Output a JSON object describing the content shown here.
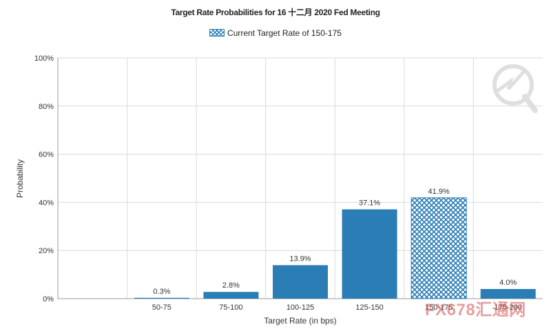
{
  "title": "Target Rate Probabilities for 16 十二月 2020 Fed Meeting",
  "legend": {
    "label": "Current Target Rate of 150-175"
  },
  "watermark": {
    "text": "FX678汇通网"
  },
  "colors": {
    "bar": "#2a7db5",
    "grid": "#d9d9d9",
    "axis": "#999999"
  },
  "chart_data": {
    "type": "bar",
    "title": "Target Rate Probabilities for 16 十二月 2020 Fed Meeting",
    "xlabel": "Target Rate (in bps)",
    "ylabel": "Probability",
    "categories": [
      "50-75",
      "75-100",
      "100-125",
      "125-150",
      "150-175",
      "175-200"
    ],
    "values": [
      0.3,
      2.8,
      13.9,
      37.1,
      41.9,
      4.0
    ],
    "data_labels": [
      "0.3%",
      "2.8%",
      "13.9%",
      "37.1%",
      "41.9%",
      "4.0%"
    ],
    "yticks": [
      "0%",
      "20%",
      "40%",
      "60%",
      "80%",
      "100%"
    ],
    "ylim": [
      0,
      100
    ],
    "highlighted_category": "150-175",
    "grid": true,
    "legend_position": "top-center"
  }
}
